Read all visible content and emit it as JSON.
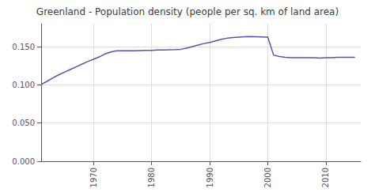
{
  "chart_data": {
    "type": "line",
    "title": "Greenland - Population density (people per sq. km of land area)",
    "x": [
      1961,
      1962,
      1963,
      1964,
      1965,
      1966,
      1967,
      1968,
      1969,
      1970,
      1971,
      1972,
      1973,
      1974,
      1975,
      1976,
      1977,
      1978,
      1979,
      1980,
      1981,
      1982,
      1983,
      1984,
      1985,
      1986,
      1987,
      1988,
      1989,
      1990,
      1991,
      1992,
      1993,
      1994,
      1995,
      1996,
      1997,
      1998,
      1999,
      2000,
      2001,
      2002,
      2003,
      2004,
      2005,
      2006,
      2007,
      2008,
      2009,
      2010,
      2011,
      2012,
      2013,
      2014,
      2015
    ],
    "values": [
      0.1005,
      0.1045,
      0.109,
      0.113,
      0.1165,
      0.12,
      0.1235,
      0.127,
      0.1305,
      0.1335,
      0.1365,
      0.1405,
      0.143,
      0.1445,
      0.1445,
      0.1445,
      0.1445,
      0.1448,
      0.145,
      0.1452,
      0.1455,
      0.1455,
      0.1458,
      0.146,
      0.1465,
      0.148,
      0.15,
      0.152,
      0.154,
      0.1555,
      0.1575,
      0.1595,
      0.161,
      0.162,
      0.1625,
      0.163,
      0.1632,
      0.163,
      0.1628,
      0.1625,
      0.139,
      0.137,
      0.136,
      0.1355,
      0.1355,
      0.1355,
      0.1355,
      0.1355,
      0.135,
      0.1355,
      0.1355,
      0.136,
      0.136,
      0.136,
      0.136
    ],
    "color": "#5555aa",
    "xlim": [
      1961,
      2016
    ],
    "xticks": [
      1970,
      1980,
      1990,
      2000,
      2010
    ],
    "ylim": [
      0.0,
      0.18
    ],
    "yticks": [
      {
        "value": 0.0,
        "label": "0.000"
      },
      {
        "value": 0.05,
        "label": "0.050"
      },
      {
        "value": 0.1,
        "label": "0.100"
      },
      {
        "value": 0.15,
        "label": "0.150"
      }
    ],
    "grid": true
  }
}
